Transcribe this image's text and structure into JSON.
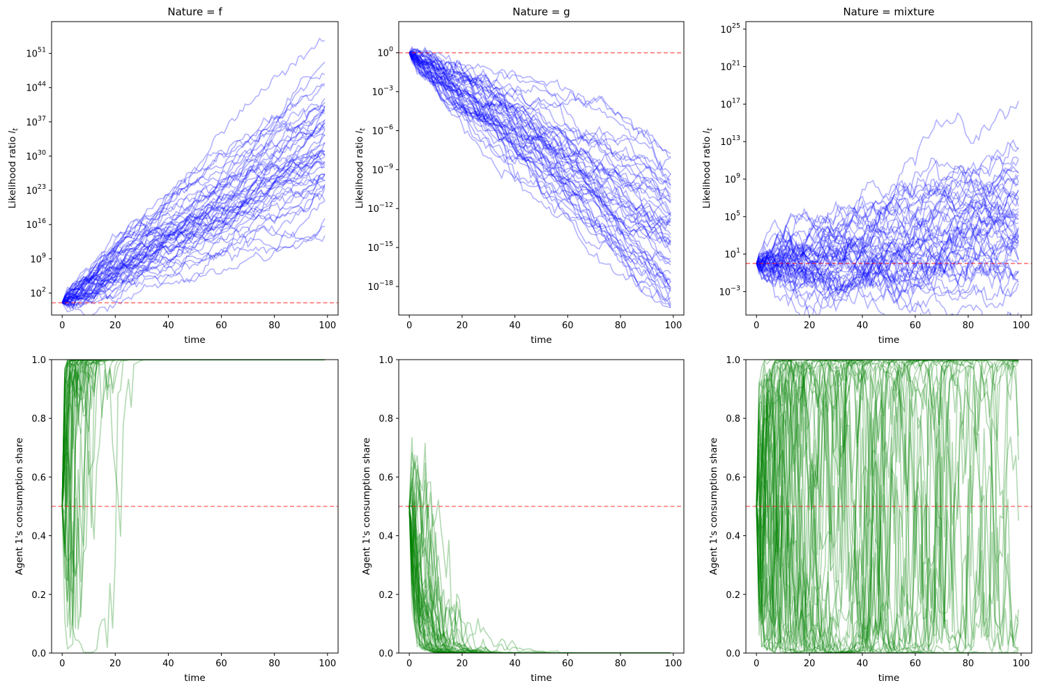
{
  "chart_data": [
    {
      "type": "line",
      "title": "Nature = f",
      "xlabel": "time",
      "ylabel": "Likelihood ratio l_t",
      "yscale": "log",
      "xlim": [
        -4,
        104
      ],
      "ylim_log10": [
        -2.5,
        57.5
      ],
      "xticks": [
        0,
        20,
        40,
        60,
        80,
        100
      ],
      "yticks_log10": [
        2,
        9,
        16,
        23,
        30,
        37,
        44,
        51
      ],
      "reference_line": 1,
      "series_count": 50,
      "drift_log10_per_step": 0.32,
      "vol_log10_per_step": 0.62,
      "line_color": "#0000ff",
      "reference_color": "#ff0000",
      "seed": 11
    },
    {
      "type": "line",
      "title": "Nature = g",
      "xlabel": "time",
      "ylabel": "Likelihood ratio l_t",
      "yscale": "log",
      "xlim": [
        -4,
        104
      ],
      "ylim_log10": [
        -20.2,
        2.4
      ],
      "xticks": [
        0,
        20,
        40,
        60,
        80,
        100
      ],
      "yticks_log10": [
        -18,
        -15,
        -12,
        -9,
        -6,
        -3,
        0
      ],
      "reference_line": 1,
      "series_count": 50,
      "drift_log10_per_step": -0.145,
      "vol_log10_per_step": 0.27,
      "line_color": "#0000ff",
      "reference_color": "#ff0000",
      "seed": 23
    },
    {
      "type": "line",
      "title": "Nature = mixture",
      "xlabel": "time",
      "ylabel": "Likelihood ratio l_t",
      "yscale": "log",
      "xlim": [
        -4,
        104
      ],
      "ylim_log10": [
        -5.5,
        25.8
      ],
      "xticks": [
        0,
        20,
        40,
        60,
        80,
        100
      ],
      "yticks_log10": [
        -3,
        1,
        5,
        9,
        13,
        17,
        21,
        25
      ],
      "reference_line": 1,
      "series_count": 50,
      "drift_log10_per_step": 0.045,
      "vol_log10_per_step": 0.62,
      "line_color": "#0000ff",
      "reference_color": "#ff0000",
      "seed": 37
    },
    {
      "type": "line",
      "title": "",
      "xlabel": "time",
      "ylabel": "Agent 1's consumption share",
      "yscale": "linear",
      "xlim": [
        -4,
        104
      ],
      "ylim": [
        0,
        1
      ],
      "xticks": [
        0,
        20,
        40,
        60,
        80,
        100
      ],
      "yticks": [
        0.0,
        0.2,
        0.4,
        0.6,
        0.8,
        1.0
      ],
      "reference_line": 0.5,
      "series_count": 50,
      "derived_from": "Nature = f",
      "line_color": "#008000",
      "reference_color": "#ff0000"
    },
    {
      "type": "line",
      "title": "",
      "xlabel": "time",
      "ylabel": "Agent 1's consumption share",
      "yscale": "linear",
      "xlim": [
        -4,
        104
      ],
      "ylim": [
        0,
        1
      ],
      "xticks": [
        0,
        20,
        40,
        60,
        80,
        100
      ],
      "yticks": [
        0.0,
        0.2,
        0.4,
        0.6,
        0.8,
        1.0
      ],
      "reference_line": 0.5,
      "series_count": 50,
      "derived_from": "Nature = g",
      "line_color": "#008000",
      "reference_color": "#ff0000"
    },
    {
      "type": "line",
      "title": "",
      "xlabel": "time",
      "ylabel": "Agent 1's consumption share",
      "yscale": "linear",
      "xlim": [
        -4,
        104
      ],
      "ylim": [
        0,
        1
      ],
      "xticks": [
        0,
        20,
        40,
        60,
        80,
        100
      ],
      "yticks": [
        0.0,
        0.2,
        0.4,
        0.6,
        0.8,
        1.0
      ],
      "reference_line": 0.5,
      "series_count": 50,
      "derived_from": "Nature = mixture",
      "line_color": "#008000",
      "reference_color": "#ff0000"
    }
  ]
}
